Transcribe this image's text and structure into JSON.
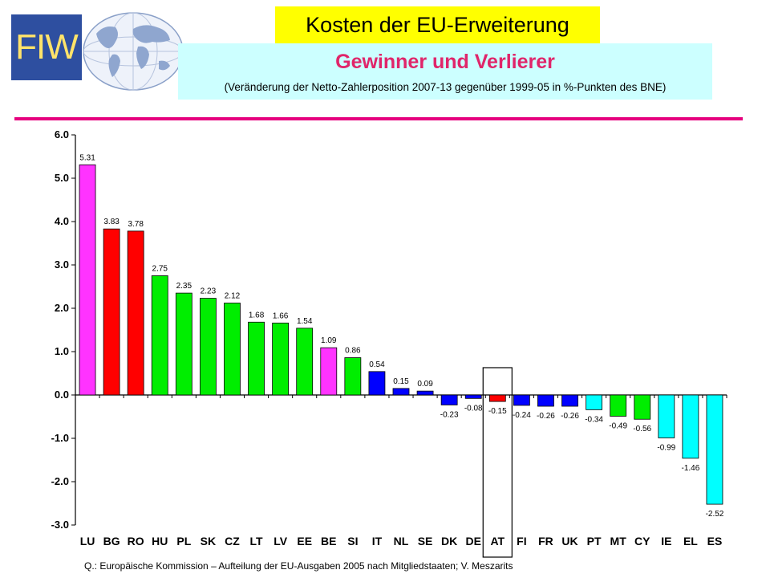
{
  "header": {
    "logo_text": "FIW",
    "title": "Kosten der EU-Erweiterung",
    "subtitle": "Gewinner und Verlierer",
    "note": "(Veränderung der Netto-Zahlerposition 2007-13 gegenüber 1999-05 in %-Punkten des BNE)"
  },
  "colors": {
    "accent_rule": "#e6007e",
    "title_bg": "#ffff00",
    "subtitle_bg": "#ccffff",
    "subtitle_text": "#e0256a"
  },
  "chart_data": {
    "type": "bar",
    "title": "",
    "xlabel": "",
    "ylabel": "",
    "ylim": [
      -3.0,
      6.0
    ],
    "yticks": [
      "6.0",
      "5.0",
      "4.0",
      "3.0",
      "2.0",
      "1.0",
      "0.0",
      "-1.0",
      "-2.0",
      "-3.0"
    ],
    "grid": false,
    "categories": [
      "LU",
      "BG",
      "RO",
      "HU",
      "PL",
      "SK",
      "CZ",
      "LT",
      "LV",
      "EE",
      "BE",
      "SI",
      "IT",
      "NL",
      "SE",
      "DK",
      "DE",
      "AT",
      "FI",
      "FR",
      "UK",
      "PT",
      "MT",
      "CY",
      "IE",
      "EL",
      "ES"
    ],
    "values": [
      5.31,
      3.83,
      3.78,
      2.75,
      2.35,
      2.23,
      2.12,
      1.68,
      1.66,
      1.54,
      1.09,
      0.86,
      0.54,
      0.15,
      0.09,
      -0.23,
      -0.08,
      -0.15,
      -0.24,
      -0.26,
      -0.26,
      -0.34,
      -0.49,
      -0.56,
      -0.99,
      -1.46,
      -2.52
    ],
    "labels": [
      "5.31",
      "3.83",
      "3.78",
      "2.75",
      "2.35",
      "2.23",
      "2.12",
      "1.68",
      "1.66",
      "1.54",
      "1.09",
      "0.86",
      "0.54",
      "0.15",
      "0.09",
      "-0.23",
      "-0.08",
      "-0.15",
      "-0.24",
      "-0.26",
      "-0.26",
      "-0.34",
      "-0.49",
      "-0.56",
      "-0.99",
      "-1.46",
      "-2.52"
    ],
    "bar_colors": [
      "#ff33ff",
      "#ff0000",
      "#ff0000",
      "#00ee00",
      "#00ee00",
      "#00ee00",
      "#00ee00",
      "#00ee00",
      "#00ee00",
      "#00ee00",
      "#ff33ff",
      "#00ee00",
      "#0000ff",
      "#0000ff",
      "#0000ff",
      "#0000ff",
      "#0000ff",
      "#ff0000",
      "#0000ff",
      "#0000ff",
      "#0000ff",
      "#00ffff",
      "#00ee00",
      "#00ee00",
      "#00ffff",
      "#00ffff",
      "#00ffff"
    ],
    "highlight": "AT"
  },
  "footer": {
    "source": "Q.: Europäische Kommission – Aufteilung der EU-Ausgaben 2005 nach Mitgliedstaaten; V. Meszarits"
  }
}
